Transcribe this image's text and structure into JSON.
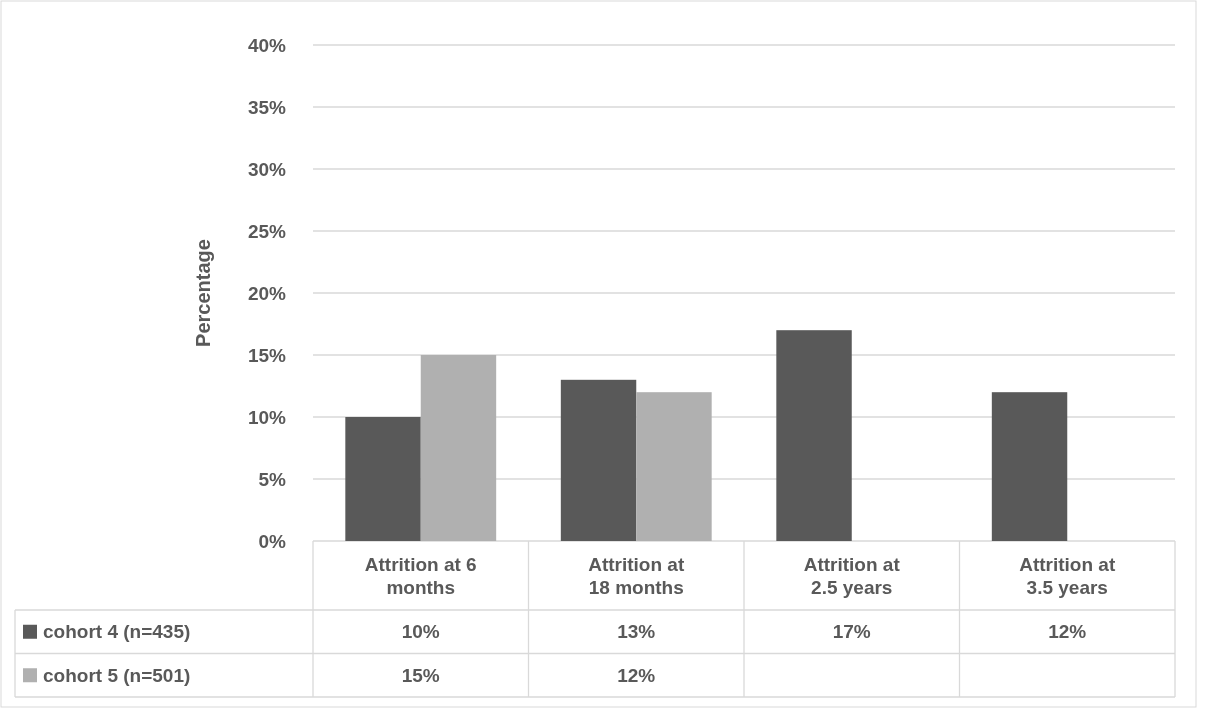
{
  "chart_data": {
    "type": "bar",
    "ylabel": "Percentage",
    "categories": [
      "Attrition at 6 months",
      "Attrition at 18 months",
      "Attrition at 2.5 years",
      "Attrition at 3.5 years"
    ],
    "series": [
      {
        "name": "cohort 4 (n=435)",
        "color": "#595959",
        "values": [
          10,
          13,
          17,
          12
        ],
        "value_labels": [
          "10%",
          "13%",
          "17%",
          "12%"
        ]
      },
      {
        "name": "cohort 5 (n=501)",
        "color": "#b0b0b0",
        "values": [
          15,
          12,
          null,
          null
        ],
        "value_labels": [
          "15%",
          "12%",
          null,
          null
        ]
      }
    ],
    "ylim": [
      0,
      40
    ],
    "yticks": [
      {
        "value": 0,
        "label": "0%"
      },
      {
        "value": 5,
        "label": "5%"
      },
      {
        "value": 10,
        "label": "10%"
      },
      {
        "value": 15,
        "label": "15%"
      },
      {
        "value": 20,
        "label": "20%"
      },
      {
        "value": 25,
        "label": "25%"
      },
      {
        "value": 30,
        "label": "30%"
      },
      {
        "value": 35,
        "label": "35%"
      },
      {
        "value": 40,
        "label": "40%"
      }
    ],
    "grid": "y",
    "legend": "bottom"
  }
}
